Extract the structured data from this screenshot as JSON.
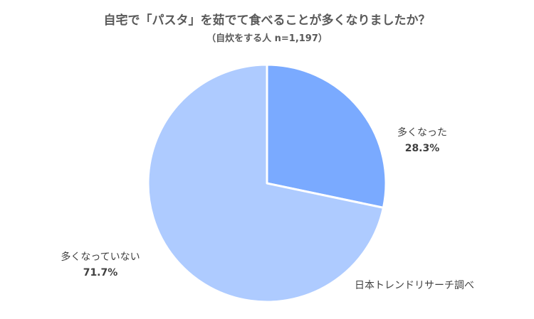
{
  "header": {
    "title": "自宅で「パスタ」を茹でて食べることが多くなりましたか？",
    "subtitle": "（自炊をする人 n=1,197）"
  },
  "source": "日本トレンドリサーチ調べ",
  "colors": {
    "increased": "#7aaaff",
    "not_increased": "#aecbff",
    "stroke": "#ffffff"
  },
  "chart_data": {
    "type": "pie",
    "title": "自宅で「パスタ」を茹でて食べることが多くなりましたか？",
    "subtitle": "（自炊をする人 n=1,197）",
    "start_angle": "12 o'clock, clockwise",
    "legend": "none",
    "slices": [
      {
        "label": "多くなった",
        "value": 28.3,
        "value_label": "28.3%",
        "color": "#7aaaff"
      },
      {
        "label": "多くなっていない",
        "value": 71.7,
        "value_label": "71.7%",
        "color": "#aecbff"
      }
    ]
  }
}
